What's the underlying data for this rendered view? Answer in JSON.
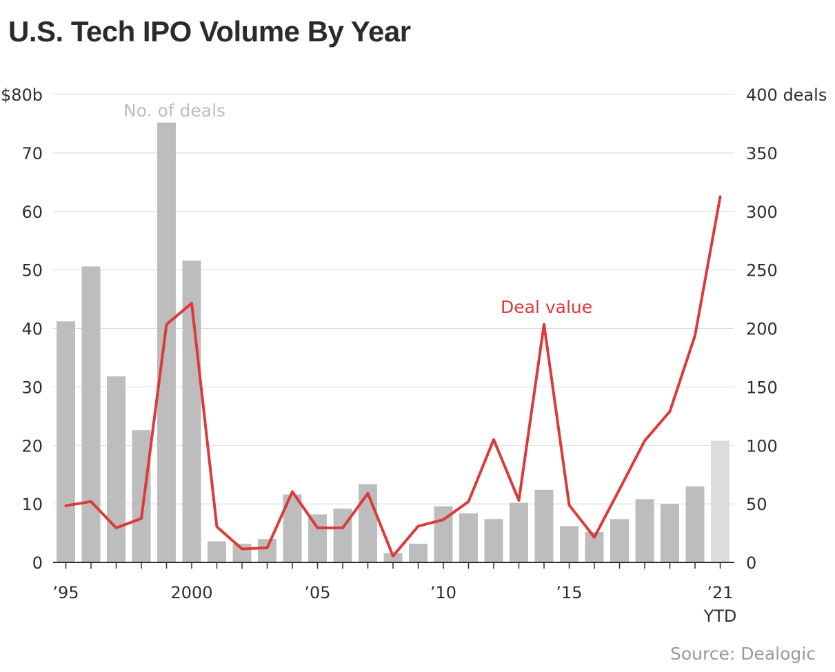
{
  "chart_data": {
    "type": "bar",
    "title": "U.S. Tech IPO Volume By Year",
    "source": "Source: Dealogic",
    "x": [
      1995,
      1996,
      1997,
      1998,
      1999,
      2000,
      2001,
      2002,
      2003,
      2004,
      2005,
      2006,
      2007,
      2008,
      2009,
      2010,
      2011,
      2012,
      2013,
      2014,
      2015,
      2016,
      2017,
      2018,
      2019,
      2020,
      2021
    ],
    "x_tick_labels": [
      {
        "year": 1995,
        "label": "’95"
      },
      {
        "year": 2000,
        "label": "2000"
      },
      {
        "year": 2005,
        "label": "’05"
      },
      {
        "year": 2010,
        "label": "’10"
      },
      {
        "year": 2015,
        "label": "’15"
      },
      {
        "year": 2021,
        "label": "’21",
        "sublabel": "YTD"
      }
    ],
    "left_axis": {
      "ylim": [
        0,
        80
      ],
      "ticks": [
        0,
        10,
        20,
        30,
        40,
        50,
        60,
        70,
        80
      ],
      "tick_labels": [
        "0",
        "10",
        "20",
        "30",
        "40",
        "50",
        "60",
        "70",
        "$80b"
      ]
    },
    "right_axis": {
      "ylim": [
        0,
        400
      ],
      "ticks": [
        0,
        50,
        100,
        150,
        200,
        250,
        300,
        350,
        400
      ],
      "tick_labels": [
        "0",
        "50",
        "100",
        "150",
        "200",
        "250",
        "300",
        "350",
        "400 deals"
      ]
    },
    "grid": true,
    "series": [
      {
        "name": "No. of deals",
        "type": "bar",
        "axis": "right",
        "color": "#bdbdbd",
        "highlight_color": "#dcdcdc",
        "highlight_year": 2021,
        "values": [
          206,
          253,
          159,
          113,
          376,
          258,
          18,
          16,
          20,
          58,
          41,
          46,
          67,
          8,
          16,
          48,
          42,
          37,
          51,
          62,
          31,
          26,
          37,
          54,
          50,
          65,
          104
        ]
      },
      {
        "name": "Deal value",
        "type": "line",
        "axis": "left",
        "color": "#dc3a3a",
        "values": [
          9.7,
          10.4,
          5.9,
          7.5,
          40.7,
          44.3,
          6.1,
          2.3,
          2.5,
          12.1,
          5.9,
          5.9,
          11.8,
          1.1,
          6.2,
          7.3,
          10.4,
          21.0,
          10.6,
          40.7,
          9.8,
          4.3,
          12.5,
          20.8,
          25.8,
          38.8,
          62.5
        ]
      }
    ]
  }
}
